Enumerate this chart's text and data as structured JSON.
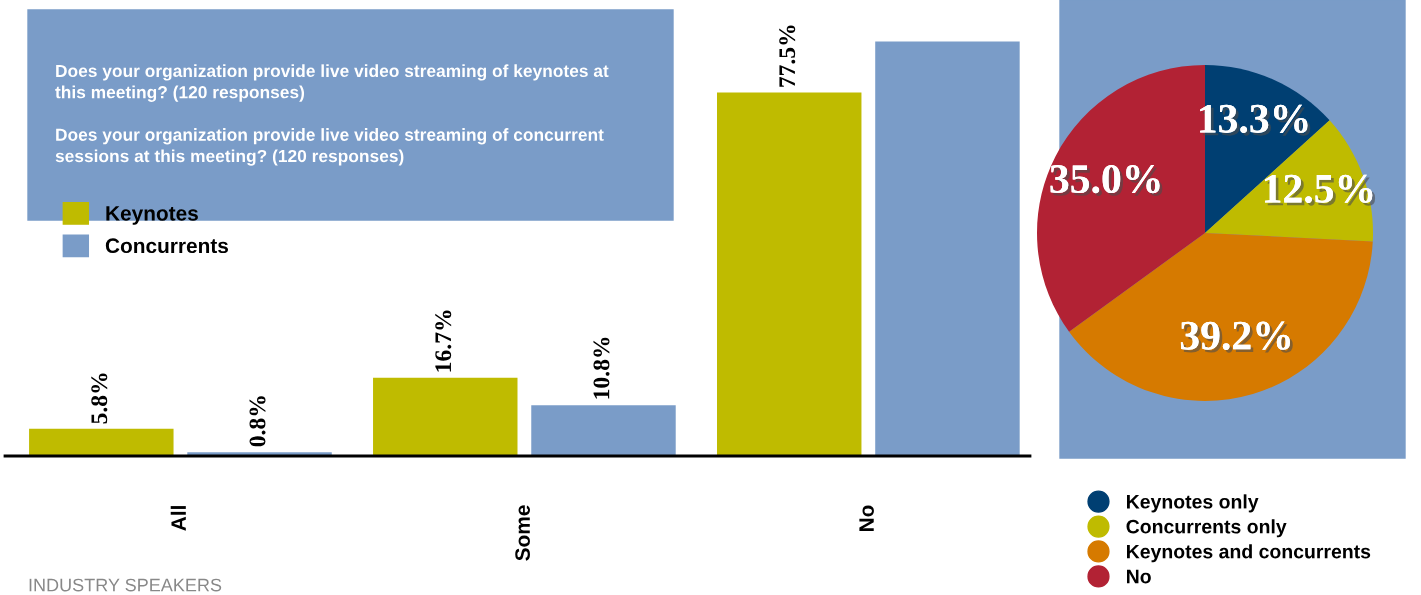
{
  "chart_data": [
    {
      "type": "bar",
      "categories": [
        "All",
        "Some",
        "No"
      ],
      "series": [
        {
          "name": "Keynotes",
          "color": "#bfbb00",
          "values": [
            5.8,
            16.7,
            77.5
          ],
          "value_labels": [
            "5.8%",
            "16.7%",
            "77.5%"
          ]
        },
        {
          "name": "Concurrents",
          "color": "#7a9cc8",
          "values": [
            0.8,
            10.8,
            88.4
          ],
          "value_labels": [
            "0.8%",
            "10.8%",
            null
          ]
        }
      ],
      "legend": "left",
      "tick_labels": "x",
      "annotations": [
        "Does your organization provide live video streaming of keynotes at\nthis meeting? (120 responses)\n\nDoes your organization provide live video streaming of concurrent\nsessions at this meeting? (120 responses)",
        "INDUSTRY SPEAKERS"
      ]
    },
    {
      "type": "pie",
      "categories": [
        "Keynotes only",
        "Concurrents only",
        "Keynotes and concurrents",
        "No"
      ],
      "values": [
        13.3,
        12.5,
        39.2,
        35.0
      ],
      "colors": [
        "#003f72",
        "#bfbb00",
        "#d67a00",
        "#b22234"
      ],
      "value_labels": [
        "13.3%",
        "12.5%",
        "39.2%",
        "35.0%"
      ],
      "legend": "bottom"
    }
  ]
}
